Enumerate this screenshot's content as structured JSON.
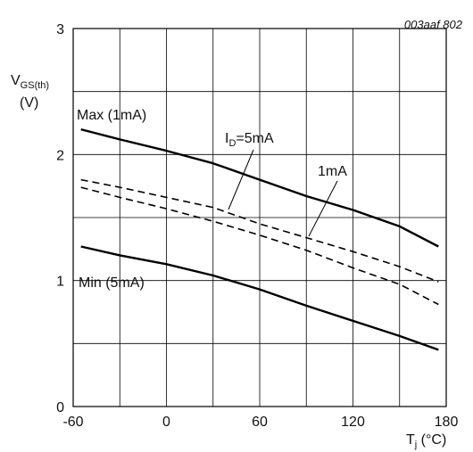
{
  "chart_data": {
    "type": "line",
    "figure_code": "003aaf 802",
    "ylabel_main": "V",
    "ylabel_sub": "GS(th)",
    "ylabel_unit": "(V)",
    "xlabel_main": "T",
    "xlabel_sub": "j",
    "xlabel_unit": " (°C)",
    "xlim": [
      -60,
      180
    ],
    "ylim": [
      0,
      3
    ],
    "x_ticks": [
      -60,
      0,
      60,
      120,
      180
    ],
    "y_ticks": [
      0,
      1,
      2,
      3
    ],
    "x_grid_step": 30,
    "y_grid_step": 0.5,
    "grid": true,
    "series": [
      {
        "id": "max-1ma",
        "style": "solid",
        "x": [
          -55,
          -30,
          0,
          30,
          60,
          90,
          120,
          150,
          175
        ],
        "y": [
          2.2,
          2.12,
          2.03,
          1.93,
          1.8,
          1.67,
          1.56,
          1.43,
          1.27
        ]
      },
      {
        "id": "typ-5ma",
        "style": "dashed",
        "x": [
          -55,
          -30,
          0,
          30,
          60,
          90,
          120,
          150,
          175
        ],
        "y": [
          1.8,
          1.74,
          1.66,
          1.58,
          1.45,
          1.34,
          1.23,
          1.11,
          0.99
        ]
      },
      {
        "id": "typ-1ma",
        "style": "dashed",
        "x": [
          -55,
          -30,
          0,
          30,
          60,
          90,
          120,
          150,
          175
        ],
        "y": [
          1.74,
          1.66,
          1.57,
          1.47,
          1.36,
          1.24,
          1.1,
          0.97,
          0.81
        ]
      },
      {
        "id": "min-5ma",
        "style": "solid",
        "x": [
          -55,
          -30,
          0,
          30,
          60,
          90,
          120,
          150,
          175
        ],
        "y": [
          1.27,
          1.2,
          1.13,
          1.04,
          0.93,
          0.8,
          0.68,
          0.56,
          0.45
        ]
      }
    ],
    "annotations": {
      "max": "Max (1mA)",
      "min": "Min (5mA)",
      "id_main": "I",
      "id_sub": "D",
      "id_value": "=5mA",
      "one_ma": "1mA"
    }
  }
}
